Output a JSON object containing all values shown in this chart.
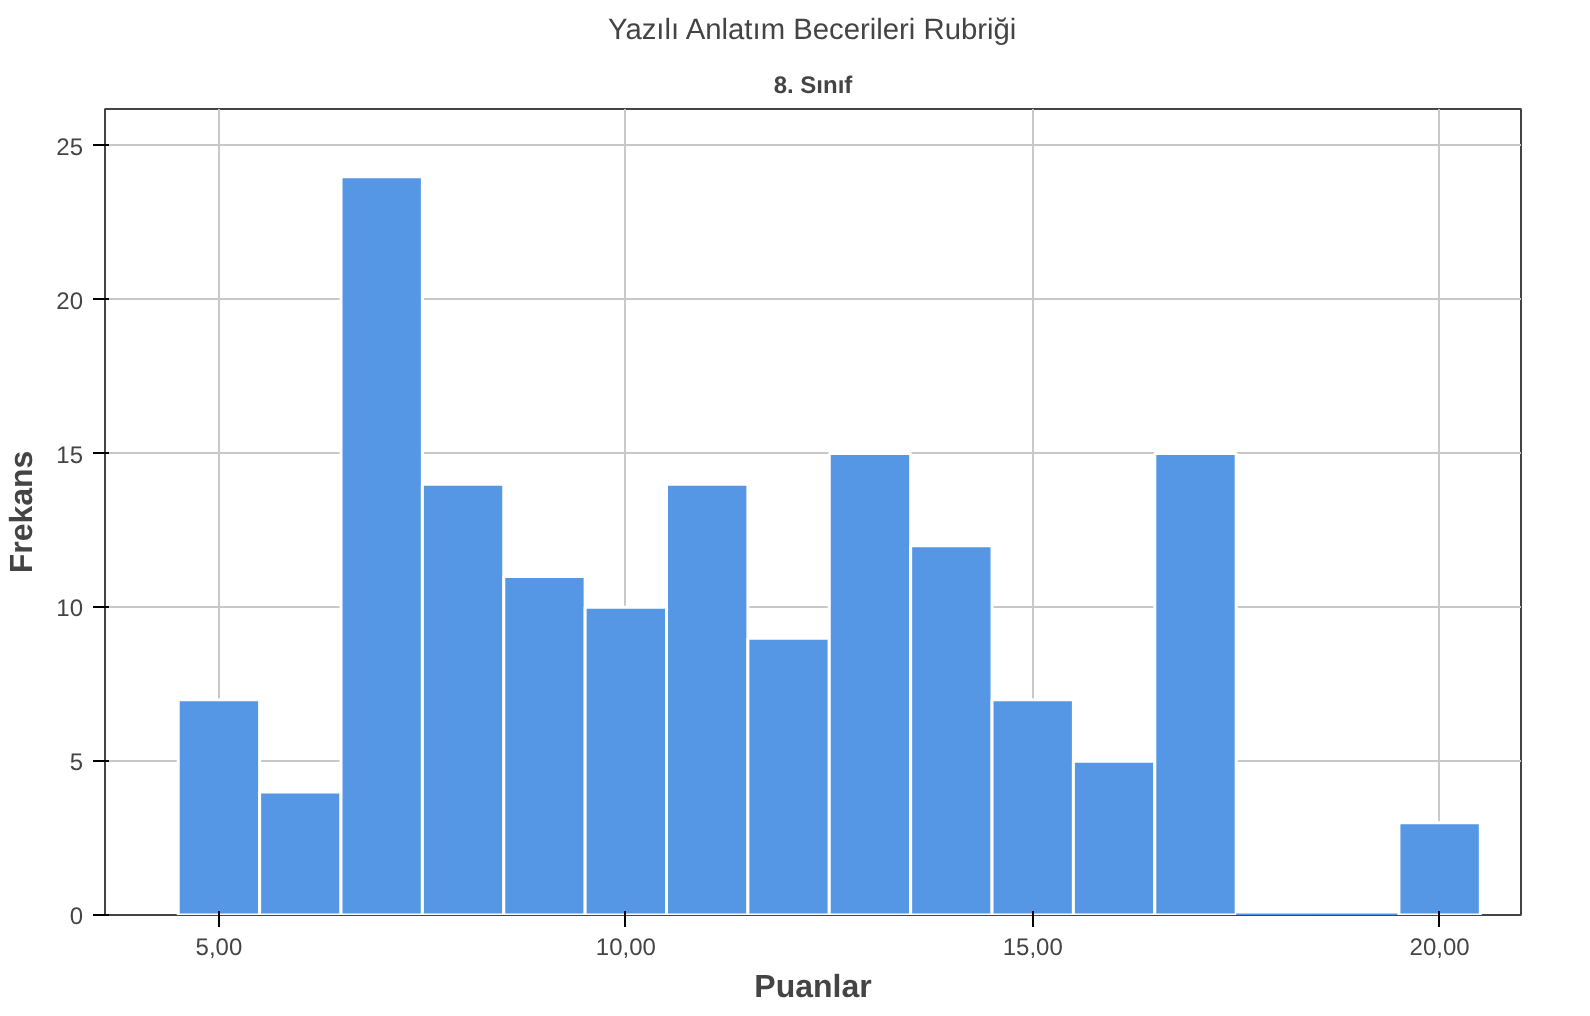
{
  "chart_data": {
    "type": "histogram",
    "title": "Yazılı Anlatım Becerileri Rubriği",
    "subtitle": "8. Sınıf",
    "xlabel": "Puanlar",
    "ylabel": "Frekans",
    "bins": [
      4.5,
      5.5,
      6.5,
      7.5,
      8.5,
      9.5,
      10.5,
      11.5,
      12.5,
      13.5,
      14.5,
      15.5,
      16.5,
      17.5,
      18.5,
      19.5,
      20.5
    ],
    "values": [
      7,
      4,
      24,
      14,
      11,
      10,
      14,
      9,
      15,
      12,
      7,
      5,
      15,
      0,
      0,
      3
    ],
    "color": "#5596e5",
    "xlim": [
      3.6,
      21.0
    ],
    "ylim": [
      0,
      26.2
    ],
    "xticks": [
      {
        "value": 5,
        "label": "5,00"
      },
      {
        "value": 10,
        "label": "10,00"
      },
      {
        "value": 15,
        "label": "15,00"
      },
      {
        "value": 20,
        "label": "20,00"
      }
    ],
    "yticks": [
      0,
      5,
      10,
      15,
      20,
      25
    ],
    "grid": true
  }
}
